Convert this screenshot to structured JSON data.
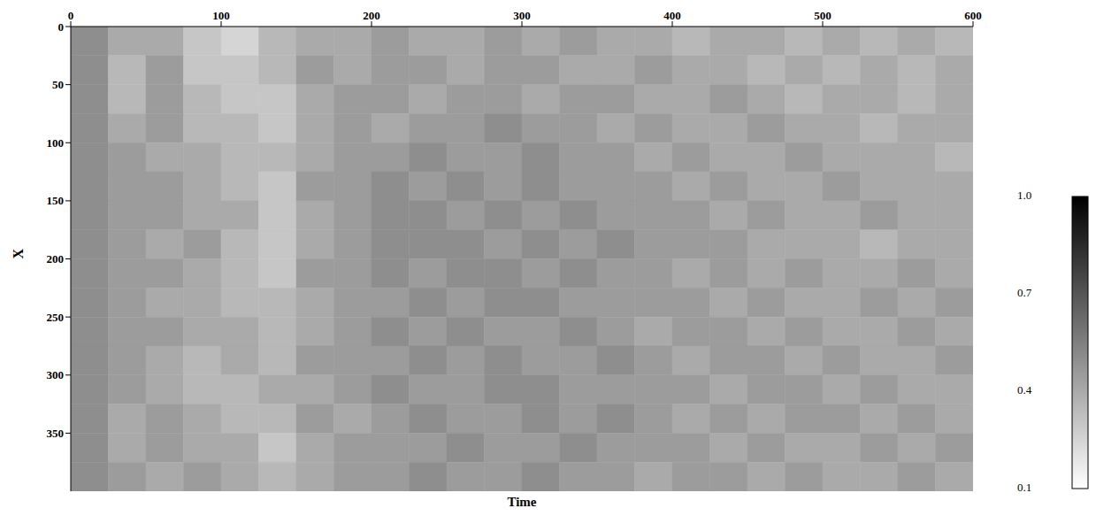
{
  "chart_data": {
    "type": "heatmap",
    "x_label": "Time",
    "y_label": "X",
    "xlim": [
      0,
      600
    ],
    "xticks": [
      0,
      100,
      200,
      300,
      400,
      500,
      600
    ],
    "ylim": [
      0,
      400
    ],
    "yticks": [
      0,
      50,
      100,
      150,
      200,
      250,
      300,
      350
    ],
    "x_bins": [
      0,
      25,
      50,
      75,
      100,
      125,
      150,
      175,
      200,
      225,
      250,
      275,
      300,
      325,
      350,
      375,
      400,
      425,
      450,
      475,
      500,
      525,
      550,
      575,
      600
    ],
    "y_bins": [
      0,
      25,
      50,
      75,
      100,
      125,
      150,
      175,
      200,
      225,
      250,
      275,
      300,
      325,
      350,
      375,
      400
    ],
    "cells": [
      [
        0.5,
        0.4,
        0.4,
        0.3,
        0.25,
        0.35,
        0.4,
        0.4,
        0.45,
        0.4,
        0.4,
        0.45,
        0.4,
        0.45,
        0.4,
        0.4,
        0.35,
        0.4,
        0.4,
        0.35,
        0.4,
        0.35,
        0.4,
        0.35
      ],
      [
        0.5,
        0.35,
        0.45,
        0.3,
        0.3,
        0.35,
        0.45,
        0.4,
        0.45,
        0.45,
        0.4,
        0.45,
        0.45,
        0.4,
        0.4,
        0.45,
        0.4,
        0.4,
        0.35,
        0.4,
        0.35,
        0.4,
        0.35,
        0.4
      ],
      [
        0.5,
        0.35,
        0.45,
        0.35,
        0.3,
        0.3,
        0.4,
        0.45,
        0.45,
        0.4,
        0.45,
        0.45,
        0.4,
        0.45,
        0.45,
        0.4,
        0.4,
        0.45,
        0.4,
        0.35,
        0.4,
        0.4,
        0.35,
        0.4
      ],
      [
        0.5,
        0.4,
        0.45,
        0.35,
        0.35,
        0.3,
        0.4,
        0.45,
        0.4,
        0.45,
        0.45,
        0.5,
        0.45,
        0.45,
        0.4,
        0.45,
        0.4,
        0.4,
        0.45,
        0.4,
        0.4,
        0.35,
        0.4,
        0.4
      ],
      [
        0.5,
        0.45,
        0.4,
        0.4,
        0.35,
        0.35,
        0.4,
        0.45,
        0.45,
        0.5,
        0.45,
        0.45,
        0.5,
        0.45,
        0.45,
        0.4,
        0.45,
        0.4,
        0.4,
        0.45,
        0.4,
        0.4,
        0.4,
        0.35
      ],
      [
        0.5,
        0.45,
        0.45,
        0.4,
        0.35,
        0.3,
        0.45,
        0.45,
        0.5,
        0.45,
        0.5,
        0.45,
        0.5,
        0.45,
        0.45,
        0.45,
        0.4,
        0.45,
        0.4,
        0.4,
        0.45,
        0.4,
        0.4,
        0.4
      ],
      [
        0.5,
        0.45,
        0.45,
        0.4,
        0.4,
        0.3,
        0.4,
        0.45,
        0.5,
        0.5,
        0.45,
        0.5,
        0.45,
        0.5,
        0.45,
        0.45,
        0.45,
        0.4,
        0.45,
        0.4,
        0.4,
        0.45,
        0.4,
        0.4
      ],
      [
        0.5,
        0.45,
        0.4,
        0.45,
        0.35,
        0.3,
        0.4,
        0.45,
        0.5,
        0.5,
        0.5,
        0.45,
        0.5,
        0.45,
        0.5,
        0.45,
        0.45,
        0.45,
        0.4,
        0.4,
        0.4,
        0.35,
        0.4,
        0.4
      ],
      [
        0.5,
        0.45,
        0.45,
        0.4,
        0.35,
        0.3,
        0.45,
        0.45,
        0.5,
        0.45,
        0.5,
        0.5,
        0.45,
        0.5,
        0.45,
        0.45,
        0.4,
        0.45,
        0.4,
        0.45,
        0.4,
        0.4,
        0.45,
        0.4
      ],
      [
        0.5,
        0.45,
        0.4,
        0.4,
        0.35,
        0.35,
        0.4,
        0.45,
        0.45,
        0.5,
        0.45,
        0.5,
        0.5,
        0.45,
        0.45,
        0.45,
        0.45,
        0.4,
        0.45,
        0.4,
        0.4,
        0.45,
        0.4,
        0.45
      ],
      [
        0.5,
        0.45,
        0.45,
        0.4,
        0.4,
        0.35,
        0.4,
        0.45,
        0.5,
        0.45,
        0.5,
        0.45,
        0.45,
        0.5,
        0.45,
        0.4,
        0.45,
        0.45,
        0.4,
        0.45,
        0.4,
        0.4,
        0.45,
        0.4
      ],
      [
        0.5,
        0.45,
        0.4,
        0.35,
        0.4,
        0.35,
        0.45,
        0.45,
        0.45,
        0.5,
        0.45,
        0.5,
        0.45,
        0.45,
        0.5,
        0.45,
        0.4,
        0.45,
        0.45,
        0.4,
        0.45,
        0.4,
        0.4,
        0.45
      ],
      [
        0.5,
        0.45,
        0.4,
        0.35,
        0.35,
        0.4,
        0.4,
        0.45,
        0.5,
        0.45,
        0.45,
        0.5,
        0.5,
        0.45,
        0.45,
        0.45,
        0.45,
        0.4,
        0.45,
        0.45,
        0.4,
        0.45,
        0.4,
        0.4
      ],
      [
        0.5,
        0.4,
        0.45,
        0.4,
        0.35,
        0.35,
        0.45,
        0.4,
        0.45,
        0.5,
        0.45,
        0.45,
        0.5,
        0.45,
        0.5,
        0.45,
        0.4,
        0.45,
        0.4,
        0.45,
        0.45,
        0.4,
        0.45,
        0.4
      ],
      [
        0.5,
        0.4,
        0.45,
        0.4,
        0.4,
        0.3,
        0.4,
        0.45,
        0.45,
        0.45,
        0.5,
        0.45,
        0.45,
        0.5,
        0.45,
        0.45,
        0.45,
        0.4,
        0.45,
        0.4,
        0.4,
        0.45,
        0.4,
        0.45
      ],
      [
        0.5,
        0.45,
        0.4,
        0.45,
        0.4,
        0.35,
        0.4,
        0.45,
        0.45,
        0.5,
        0.45,
        0.45,
        0.5,
        0.45,
        0.45,
        0.4,
        0.45,
        0.45,
        0.4,
        0.45,
        0.4,
        0.4,
        0.45,
        0.4
      ]
    ],
    "colorbar_range": [
      0.1,
      1.0
    ],
    "colorbar_ticks": [
      {
        "value": 1.0,
        "label": "1.0"
      },
      0.7,
      0.4,
      0.1
    ]
  }
}
